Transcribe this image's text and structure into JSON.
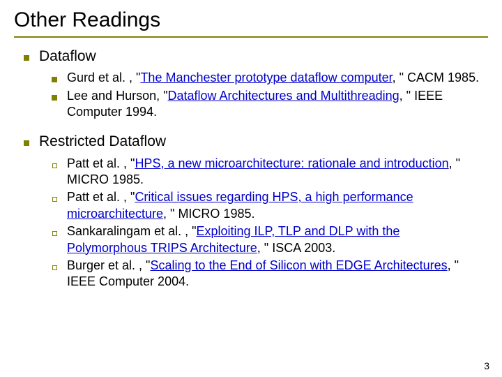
{
  "title": "Other Readings",
  "page_number": "3",
  "colors": {
    "accent": "#808000",
    "link": "#0000cc",
    "text": "#000000",
    "background": "#ffffff"
  },
  "section1": {
    "heading": "Dataflow",
    "item1": {
      "prefix": "Gurd et al. , \"",
      "link": "The Manchester prototype dataflow computer",
      "suffix": ", \" CACM 1985."
    },
    "item2": {
      "prefix": "Lee and Hurson, \"",
      "link": "Dataflow Architectures and Multithreading",
      "suffix": ", \" IEEE Computer 1994."
    }
  },
  "section2": {
    "heading": "Restricted Dataflow",
    "item1": {
      "prefix": "Patt et al. , \"",
      "link": "HPS, a new microarchitecture: rationale and introduction",
      "suffix": ", \" MICRO 1985."
    },
    "item2": {
      "prefix": "Patt et al. , \"",
      "link": "Critical issues regarding HPS, a high performance microarchitecture",
      "suffix": ", \" MICRO 1985."
    },
    "item3": {
      "prefix": "Sankaralingam et al. , \"",
      "link": "Exploiting ILP, TLP and DLP with the Polymorphous TRIPS Architecture",
      "suffix": ", \" ISCA 2003."
    },
    "item4": {
      "prefix": "Burger et al. , \"",
      "link": "Scaling to the End of Silicon with EDGE Architectures",
      "suffix": ", \" IEEE Computer 2004."
    }
  }
}
